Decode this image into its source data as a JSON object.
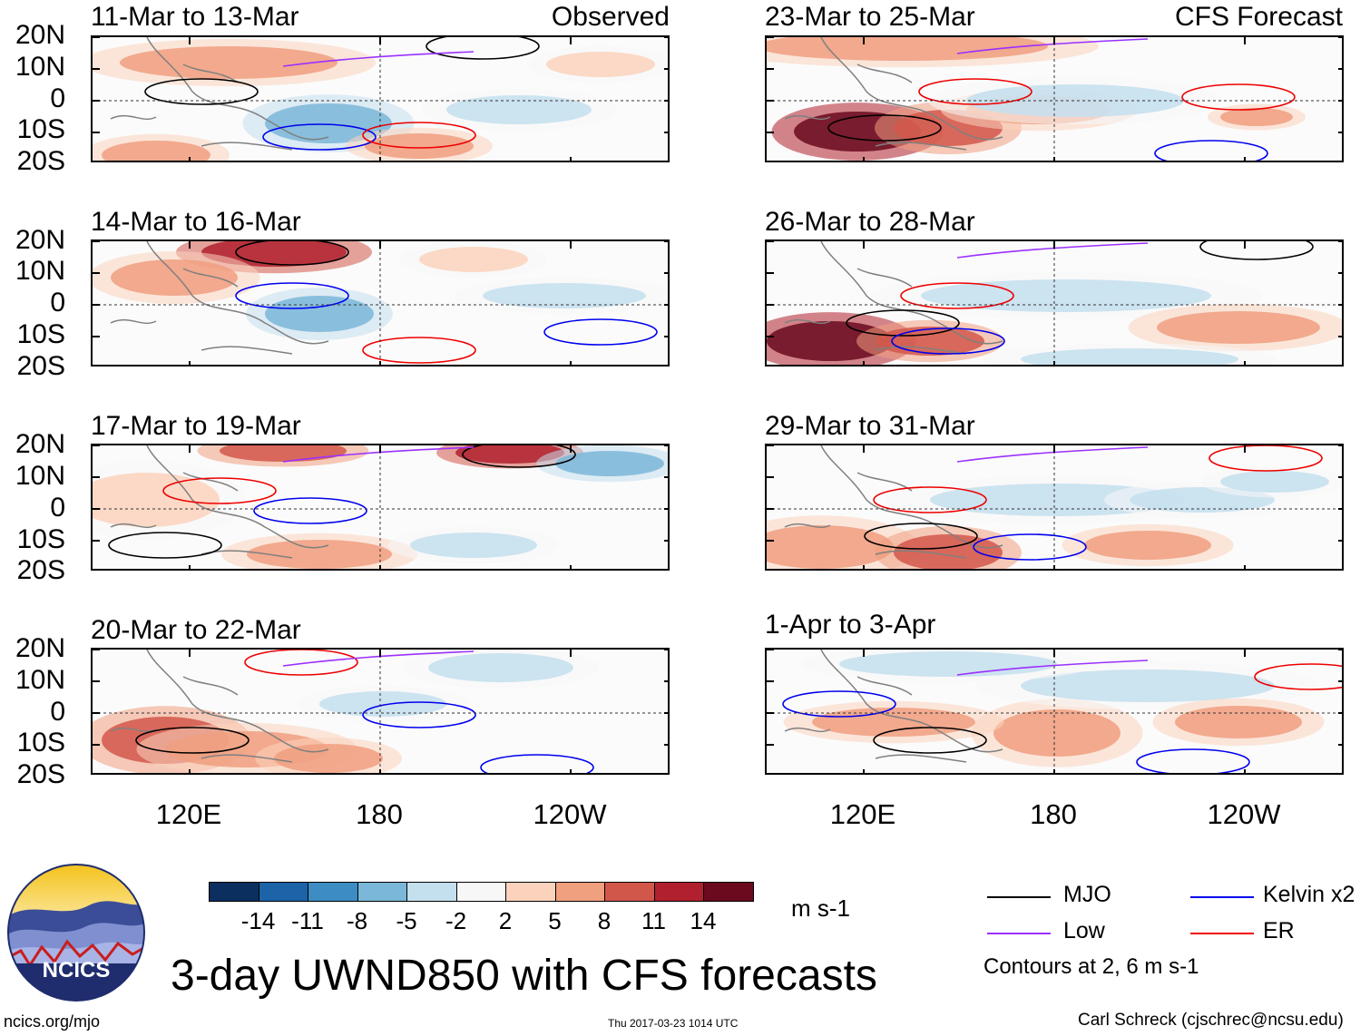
{
  "figure": {
    "title": "3-day UWND850 with CFS forecasts",
    "units": "m s-1",
    "contour_note": "Contours at 2, 6 m s-1",
    "credit": "Carl Schreck (cjschrec@ncsu.edu)",
    "site": "ncics.org/mjo",
    "timestamp": "Thu 2017-03-23 1014 UTC",
    "logo_text": "NCICS"
  },
  "column_labels": {
    "left": "Observed",
    "right": "CFS Forecast"
  },
  "panels": [
    {
      "period": "11-Mar to 13-Mar",
      "source": "observed"
    },
    {
      "period": "14-Mar to 16-Mar",
      "source": "observed"
    },
    {
      "period": "17-Mar to 19-Mar",
      "source": "observed"
    },
    {
      "period": "20-Mar to 22-Mar",
      "source": "observed"
    },
    {
      "period": "23-Mar to 25-Mar",
      "source": "forecast"
    },
    {
      "period": "26-Mar to 28-Mar",
      "source": "forecast"
    },
    {
      "period": "29-Mar to 31-Mar",
      "source": "forecast"
    },
    {
      "period": "1-Apr to 3-Apr",
      "source": "forecast"
    }
  ],
  "axes": {
    "lat_labels": [
      "20N",
      "10N",
      "0",
      "10S",
      "20S"
    ],
    "lon_labels": [
      "120E",
      "180",
      "120W"
    ]
  },
  "colorbar": {
    "ticks": [
      "-14",
      "-11",
      "-8",
      "-5",
      "-2",
      "2",
      "5",
      "8",
      "11",
      "14"
    ],
    "colors": [
      "#0b2f5f",
      "#1c63a8",
      "#3d8cc4",
      "#7ab7d8",
      "#c4dfee",
      "#f7f7f7",
      "#fbd3bd",
      "#f09f7f",
      "#d2574b",
      "#b0202e",
      "#6b0a1e"
    ]
  },
  "legend": [
    {
      "label": "MJO",
      "color": "#000000"
    },
    {
      "label": "Kelvin x2",
      "color": "#0000ee"
    },
    {
      "label": "Low",
      "color": "#9b30ff"
    },
    {
      "label": "ER",
      "color": "#ee0000"
    }
  ]
}
